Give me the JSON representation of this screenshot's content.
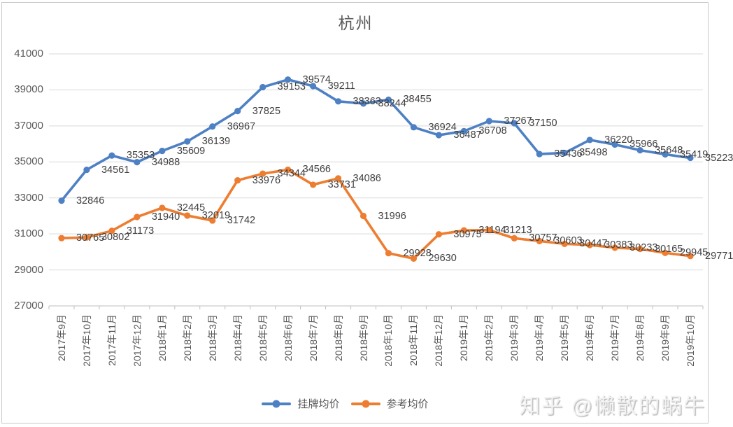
{
  "title": "杭州",
  "watermark": "知乎 @懒散的蜗牛",
  "colors": {
    "series1": "#4E80C4",
    "series2": "#ED7D31",
    "grid": "#D9D9D9",
    "axis_line": "#BFBFBF",
    "axis_text": "#595959",
    "data_label_text": "#404040",
    "background": "#FFFFFF"
  },
  "chart_data": {
    "type": "line",
    "title": "杭州",
    "xlabel": "",
    "ylabel": "",
    "ylim": [
      27000,
      41000
    ],
    "y_ticks": [
      27000,
      29000,
      31000,
      33000,
      35000,
      37000,
      39000,
      41000
    ],
    "grid": true,
    "legend_position": "bottom",
    "data_labels": true,
    "marker": "circle",
    "categories": [
      "2017年9月",
      "2017年10月",
      "2017年11月",
      "2017年12月",
      "2018年1月",
      "2018年2月",
      "2018年3月",
      "2018年4月",
      "2018年5月",
      "2018年6月",
      "2018年7月",
      "2018年8月",
      "2018年9月",
      "2018年10月",
      "2018年11月",
      "2018年12月",
      "2019年1月",
      "2019年2月",
      "2019年3月",
      "2019年4月",
      "2019年5月",
      "2019年6月",
      "2019年7月",
      "2019年8月",
      "2019年9月",
      "2019年10月"
    ],
    "series": [
      {
        "name": "挂牌均价",
        "color": "#4E80C4",
        "values": [
          32846,
          34561,
          35353,
          34988,
          35609,
          36139,
          36967,
          37825,
          39153,
          39574,
          39211,
          38363,
          38244,
          38455,
          36924,
          36487,
          36708,
          37267,
          37150,
          35436,
          35498,
          36220,
          35966,
          35648,
          35419,
          35223
        ]
      },
      {
        "name": "参考均价",
        "color": "#ED7D31",
        "values": [
          30765,
          30802,
          31173,
          31940,
          32445,
          32019,
          31742,
          33976,
          34344,
          34566,
          33731,
          34086,
          31996,
          29928,
          29630,
          30975,
          31194,
          31213,
          30757,
          30603,
          30447,
          30383,
          30233,
          30165,
          29945,
          29771
        ]
      }
    ]
  }
}
